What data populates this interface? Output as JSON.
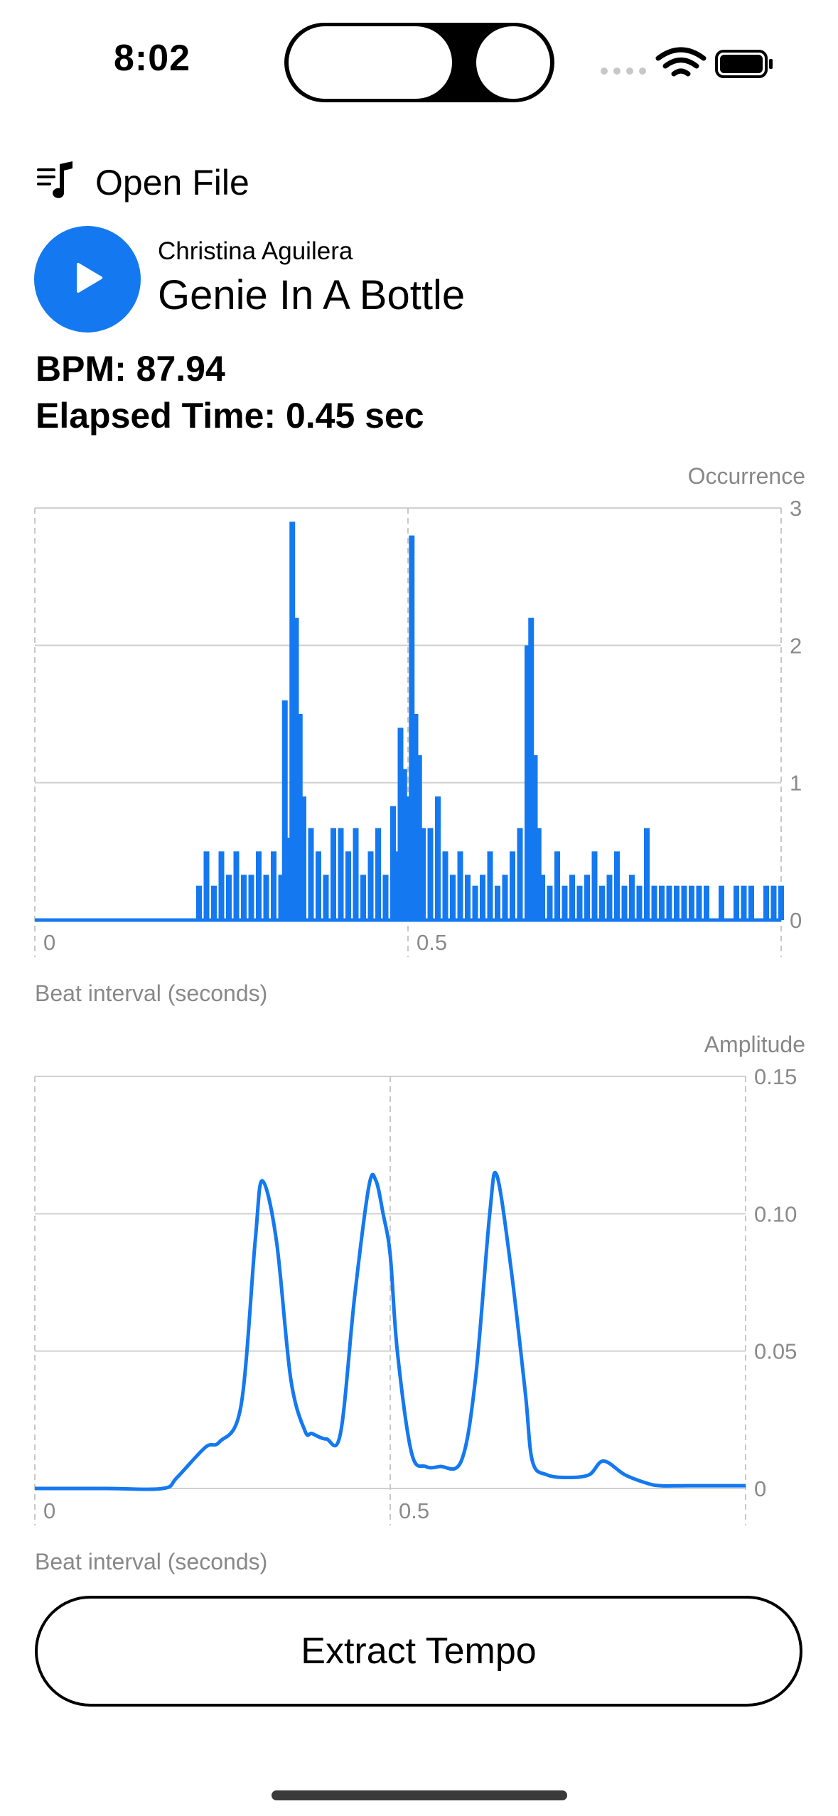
{
  "status_bar": {
    "time": "8:02"
  },
  "header": {
    "open_file_label": "Open File"
  },
  "player": {
    "artist": "Christina Aguilera",
    "title": "Genie In A Bottle"
  },
  "stats": {
    "bpm": "BPM: 87.94",
    "elapsed": "Elapsed Time: 0.45 sec"
  },
  "colors": {
    "accent": "#1479f0"
  },
  "buttons": {
    "extract": "Extract Tempo"
  },
  "chart_data": [
    {
      "type": "bar",
      "ylabel": "Occurrence",
      "xlabel": "Beat interval (seconds)",
      "xlim": [
        0,
        1.0
      ],
      "ylim": [
        0,
        3
      ],
      "x_ticks": [
        0,
        0.5
      ],
      "y_ticks": [
        0,
        1,
        2,
        3
      ],
      "x_tick_labels": [
        "0",
        "0.5"
      ],
      "y_tick_labels": [
        "0",
        "1",
        "2",
        "3"
      ],
      "x": [
        0.22,
        0.23,
        0.24,
        0.25,
        0.26,
        0.27,
        0.28,
        0.29,
        0.3,
        0.31,
        0.32,
        0.33,
        0.34,
        0.335,
        0.345,
        0.35,
        0.355,
        0.36,
        0.37,
        0.38,
        0.39,
        0.4,
        0.41,
        0.42,
        0.43,
        0.44,
        0.45,
        0.46,
        0.47,
        0.48,
        0.485,
        0.49,
        0.495,
        0.5,
        0.505,
        0.51,
        0.515,
        0.52,
        0.53,
        0.54,
        0.55,
        0.56,
        0.57,
        0.58,
        0.59,
        0.6,
        0.61,
        0.62,
        0.63,
        0.64,
        0.65,
        0.66,
        0.665,
        0.67,
        0.675,
        0.68,
        0.69,
        0.7,
        0.71,
        0.72,
        0.73,
        0.74,
        0.75,
        0.76,
        0.77,
        0.78,
        0.79,
        0.8,
        0.81,
        0.82,
        0.83,
        0.84,
        0.85,
        0.86,
        0.87,
        0.88,
        0.89,
        0.9,
        0.92,
        0.94,
        0.95,
        0.96,
        0.98,
        0.99,
        1.0
      ],
      "values": [
        0.25,
        0.5,
        0.25,
        0.5,
        0.33,
        0.5,
        0.33,
        0.33,
        0.5,
        0.33,
        0.5,
        0.33,
        0.6,
        1.6,
        2.9,
        2.2,
        1.5,
        0.9,
        0.67,
        0.5,
        0.33,
        0.67,
        0.67,
        0.5,
        0.67,
        0.33,
        0.5,
        0.67,
        0.33,
        0.83,
        0.5,
        1.4,
        1.1,
        0.9,
        2.8,
        1.5,
        1.2,
        0.67,
        0.67,
        0.9,
        0.5,
        0.33,
        0.5,
        0.33,
        0.25,
        0.33,
        0.5,
        0.25,
        0.33,
        0.5,
        0.67,
        2.0,
        2.2,
        1.2,
        0.67,
        0.33,
        0.25,
        0.5,
        0.25,
        0.33,
        0.25,
        0.33,
        0.5,
        0.25,
        0.33,
        0.5,
        0.25,
        0.33,
        0.25,
        0.67,
        0.25,
        0.25,
        0.25,
        0.25,
        0.25,
        0.25,
        0.25,
        0.25,
        0.25,
        0.25,
        0.25,
        0.25,
        0.25,
        0.25,
        0.25
      ]
    },
    {
      "type": "line",
      "ylabel": "Amplitude",
      "xlabel": "Beat interval (seconds)",
      "xlim": [
        0,
        1.0
      ],
      "ylim": [
        0,
        0.15
      ],
      "x_ticks": [
        0,
        0.5
      ],
      "y_ticks": [
        0,
        0.05,
        0.1,
        0.15
      ],
      "x_tick_labels": [
        "0",
        "0.5"
      ],
      "y_tick_labels": [
        "0",
        "0.05",
        "0.10",
        "0.15"
      ],
      "x": [
        0.0,
        0.1,
        0.18,
        0.2,
        0.24,
        0.26,
        0.29,
        0.31,
        0.32,
        0.34,
        0.36,
        0.38,
        0.39,
        0.41,
        0.43,
        0.45,
        0.47,
        0.48,
        0.49,
        0.5,
        0.51,
        0.53,
        0.55,
        0.57,
        0.6,
        0.62,
        0.64,
        0.65,
        0.67,
        0.69,
        0.7,
        0.72,
        0.75,
        0.78,
        0.8,
        0.83,
        0.86,
        0.88,
        0.92,
        1.0
      ],
      "y": [
        0.0,
        0.0,
        0.0,
        0.004,
        0.015,
        0.017,
        0.03,
        0.09,
        0.112,
        0.09,
        0.04,
        0.021,
        0.02,
        0.018,
        0.02,
        0.07,
        0.11,
        0.112,
        0.1,
        0.085,
        0.05,
        0.013,
        0.008,
        0.008,
        0.01,
        0.04,
        0.1,
        0.114,
        0.08,
        0.035,
        0.01,
        0.005,
        0.004,
        0.005,
        0.01,
        0.005,
        0.002,
        0.001,
        0.001,
        0.001
      ]
    }
  ]
}
